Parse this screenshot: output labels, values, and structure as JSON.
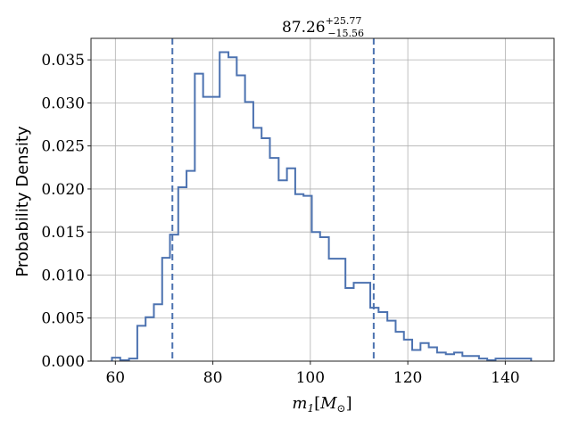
{
  "chart_data": {
    "type": "histogram",
    "title": {
      "base": "87.26",
      "sup": "+25.77",
      "sub": "−15.56"
    },
    "xlabel": {
      "main": "m",
      "sub": "1",
      "bracket_open": "[",
      "unit": "M",
      "unit_sub": "⊙",
      "bracket_close": "]"
    },
    "ylabel": "Probability Density",
    "xlim": [
      55,
      150
    ],
    "ylim": [
      0,
      0.0375
    ],
    "xticks": [
      60,
      80,
      100,
      120,
      140
    ],
    "xtick_labels": [
      "60",
      "80",
      "100",
      "120",
      "140"
    ],
    "yticks": [
      0,
      0.005,
      0.01,
      0.015,
      0.02,
      0.025,
      0.03,
      0.035
    ],
    "ytick_labels": [
      "0.000",
      "0.005",
      "0.010",
      "0.015",
      "0.020",
      "0.025",
      "0.030",
      "0.035"
    ],
    "grid": true,
    "color": "#4c72b0",
    "bin_edges": [
      59.3,
      61.0,
      62.8,
      64.5,
      66.2,
      67.9,
      69.6,
      71.2,
      72.9,
      74.6,
      76.3,
      78.0,
      79.7,
      81.4,
      83.2,
      84.9,
      86.6,
      88.3,
      90.0,
      91.7,
      93.5,
      95.2,
      96.9,
      98.6,
      100.3,
      102.0,
      103.8,
      105.5,
      107.2,
      108.9,
      110.6,
      112.3,
      114.0,
      115.8,
      117.5,
      119.2,
      120.9,
      122.6,
      124.3,
      126.0,
      127.8,
      129.5,
      131.2,
      132.9,
      134.6,
      136.3,
      138.0,
      139.8,
      141.5,
      143.2,
      145.3
    ],
    "densities": [
      0.0004,
      0.0001,
      0.0003,
      0.0041,
      0.0051,
      0.0066,
      0.012,
      0.0147,
      0.0202,
      0.0221,
      0.0334,
      0.0307,
      0.0307,
      0.0359,
      0.0353,
      0.0332,
      0.0301,
      0.0271,
      0.0259,
      0.0236,
      0.021,
      0.0224,
      0.0194,
      0.0192,
      0.015,
      0.0144,
      0.0119,
      0.0119,
      0.0085,
      0.0091,
      0.0091,
      0.0062,
      0.0057,
      0.0047,
      0.0034,
      0.0025,
      0.0013,
      0.0021,
      0.0016,
      0.001,
      0.0008,
      0.001,
      0.0006,
      0.0006,
      0.0003,
      0.0001,
      0.0003,
      0.0003,
      0.0003,
      0.0003
    ],
    "vlines": [
      71.7,
      113.0
    ]
  }
}
